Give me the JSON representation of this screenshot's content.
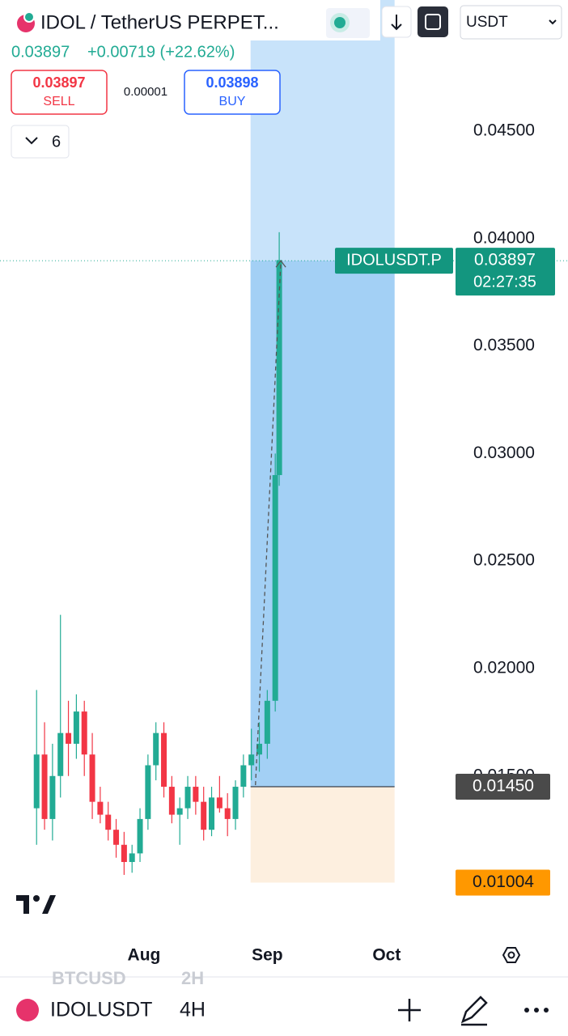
{
  "header": {
    "symbol": "IDOL / TetherUS PERPET...",
    "currency": "USDT",
    "price": "0.03897",
    "change": "+0.00719 (+22.62%)"
  },
  "trade": {
    "sell_price": "0.03897",
    "sell_label": "SELL",
    "spread": "0.00001",
    "buy_price": "0.03898",
    "buy_label": "BUY"
  },
  "indicators": {
    "count": "6"
  },
  "chart_data": {
    "type": "candlestick",
    "x": [
      4,
      6,
      8,
      10,
      12,
      14,
      16,
      18,
      20,
      22,
      24,
      26,
      28,
      30,
      32,
      34,
      36,
      38,
      40,
      42,
      44,
      46,
      48,
      50,
      52,
      54,
      56,
      58,
      60,
      62,
      64,
      65
    ],
    "open": [
      0.0135,
      0.016,
      0.013,
      0.015,
      0.017,
      0.0165,
      0.018,
      0.016,
      0.0138,
      0.0132,
      0.0125,
      0.0118,
      0.011,
      0.0114,
      0.013,
      0.0155,
      0.017,
      0.0145,
      0.0132,
      0.0135,
      0.0145,
      0.0138,
      0.0125,
      0.014,
      0.0135,
      0.013,
      0.0145,
      0.0155,
      0.016,
      0.0165,
      0.0185,
      0.029
    ],
    "high": [
      0.019,
      0.0175,
      0.0165,
      0.0225,
      0.0185,
      0.0188,
      0.0185,
      0.017,
      0.0145,
      0.0138,
      0.013,
      0.0124,
      0.0118,
      0.0135,
      0.016,
      0.0175,
      0.0175,
      0.015,
      0.014,
      0.015,
      0.015,
      0.0145,
      0.0145,
      0.015,
      0.0142,
      0.0148,
      0.016,
      0.0172,
      0.0175,
      0.019,
      0.03,
      0.0403
    ],
    "low": [
      0.0118,
      0.0125,
      0.012,
      0.014,
      0.015,
      0.0158,
      0.015,
      0.013,
      0.0128,
      0.012,
      0.0112,
      0.0104,
      0.0105,
      0.011,
      0.0125,
      0.0148,
      0.014,
      0.0128,
      0.0118,
      0.013,
      0.0132,
      0.012,
      0.0122,
      0.0133,
      0.0122,
      0.0125,
      0.014,
      0.0148,
      0.0152,
      0.0158,
      0.018,
      0.0285
    ],
    "close": [
      0.016,
      0.013,
      0.015,
      0.017,
      0.0165,
      0.018,
      0.016,
      0.0138,
      0.0132,
      0.0125,
      0.0118,
      0.011,
      0.0114,
      0.013,
      0.0155,
      0.017,
      0.0145,
      0.0132,
      0.0135,
      0.0145,
      0.0138,
      0.0125,
      0.014,
      0.0135,
      0.013,
      0.0145,
      0.0155,
      0.016,
      0.0165,
      0.0185,
      0.029,
      0.039
    ],
    "up_color": "#22ab94",
    "down_color": "#f23645",
    "xlim": [
      -5.2,
      137.6
    ],
    "xticks": [
      {
        "value": 31,
        "label": "Aug"
      },
      {
        "value": 62,
        "label": "Sep"
      },
      {
        "value": 92,
        "label": "Oct"
      }
    ],
    "ylim": [
      0.0078,
      0.0511
    ],
    "yticks": [
      {
        "value": 0.015,
        "label": "0.01500"
      },
      {
        "value": 0.02,
        "label": "0.02000"
      },
      {
        "value": 0.025,
        "label": "0.02500"
      },
      {
        "value": 0.03,
        "label": "0.03000"
      },
      {
        "value": 0.035,
        "label": "0.03500"
      },
      {
        "value": 0.04,
        "label": "0.04000"
      },
      {
        "value": 0.045,
        "label": "0.04500"
      }
    ],
    "price_line": 0.03897,
    "price_tag": "IDOLUSDT.P",
    "countdown": "02:27:35",
    "position": {
      "x_range": [
        57.8,
        94
      ],
      "entry": {
        "value": 0.0145,
        "label": "0.01450"
      },
      "stop": 0.01004
    }
  },
  "footer": {
    "symbol": "IDOLUSDT",
    "interval": "4H",
    "prev_symbol": "BTCUSD",
    "prev_interval": "2H"
  }
}
